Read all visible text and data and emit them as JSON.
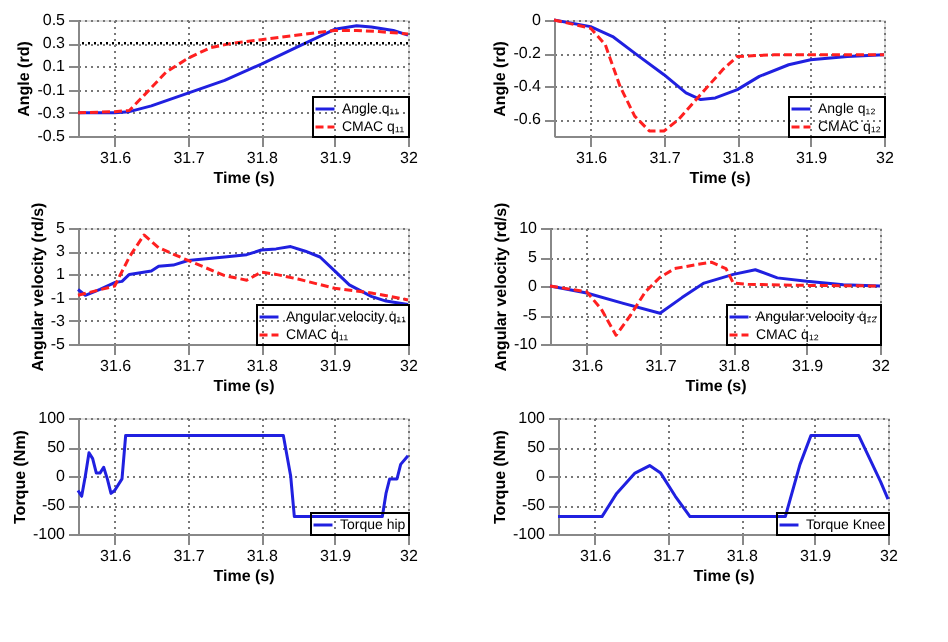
{
  "chart_data": [
    {
      "type": "line",
      "xlabel": "Time (s)",
      "ylabel": "Angle (rd)",
      "xlim": [
        31.55,
        32
      ],
      "xticks": [
        31.6,
        31.7,
        31.8,
        31.9,
        32
      ],
      "ylim": [
        -0.5,
        0.5
      ],
      "yticks": [
        -0.5,
        -0.3,
        -0.1,
        0.1,
        0.3,
        0.5
      ],
      "grid": true,
      "legend": "bottom right",
      "marker": "none",
      "ref_lines": [
        {
          "axis": "y",
          "value": 0.3,
          "color": "#000000",
          "line_style": "dotted"
        }
      ],
      "series": [
        {
          "name": "Angle q₁₁",
          "color": "#2020e0",
          "line_style": "solid",
          "x": [
            31.55,
            31.6,
            31.62,
            31.65,
            31.7,
            31.75,
            31.8,
            31.85,
            31.9,
            31.93,
            31.95,
            31.98,
            32
          ],
          "values": [
            -0.3,
            -0.3,
            -0.29,
            -0.24,
            -0.13,
            -0.02,
            0.12,
            0.27,
            0.42,
            0.45,
            0.44,
            0.41,
            0.37
          ]
        },
        {
          "name": "CMAC q₁₁",
          "color": "#ff2020",
          "line_style": "dashed",
          "x": [
            31.55,
            31.6,
            31.62,
            31.64,
            31.67,
            31.7,
            31.73,
            31.76,
            31.8,
            31.85,
            31.9,
            31.93,
            31.96,
            32
          ],
          "values": [
            -0.3,
            -0.29,
            -0.28,
            -0.15,
            0.05,
            0.17,
            0.26,
            0.3,
            0.33,
            0.37,
            0.41,
            0.41,
            0.4,
            0.38
          ]
        }
      ]
    },
    {
      "type": "line",
      "xlabel": "Time (s)",
      "ylabel": "Angle (rd)",
      "xlim": [
        31.55,
        32
      ],
      "xticks": [
        31.6,
        31.7,
        31.8,
        31.9,
        32
      ],
      "ylim": [
        -0.7,
        0
      ],
      "yticks": [
        -0.6,
        -0.4,
        -0.2,
        0
      ],
      "grid": true,
      "legend": "bottom right",
      "marker": "none",
      "series": [
        {
          "name": "Angle q₁₂",
          "color": "#2020e0",
          "line_style": "solid",
          "x": [
            31.55,
            31.6,
            31.63,
            31.66,
            31.7,
            31.73,
            31.75,
            31.77,
            31.8,
            31.83,
            31.87,
            31.9,
            31.95,
            32
          ],
          "values": [
            0,
            -0.04,
            -0.1,
            -0.2,
            -0.33,
            -0.44,
            -0.48,
            -0.47,
            -0.42,
            -0.34,
            -0.27,
            -0.24,
            -0.22,
            -0.21
          ]
        },
        {
          "name": "CMAC q₁₂",
          "color": "#ff2020",
          "line_style": "dashed",
          "x": [
            31.55,
            31.6,
            31.62,
            31.64,
            31.66,
            31.68,
            31.7,
            31.72,
            31.75,
            31.78,
            31.8,
            31.85,
            31.9,
            32
          ],
          "values": [
            0,
            -0.05,
            -0.15,
            -0.4,
            -0.58,
            -0.67,
            -0.67,
            -0.6,
            -0.45,
            -0.3,
            -0.22,
            -0.21,
            -0.21,
            -0.21
          ]
        }
      ]
    },
    {
      "type": "line",
      "xlabel": "Time (s)",
      "ylabel": "Angular velocity (rd/s)",
      "xlim": [
        31.55,
        32
      ],
      "xticks": [
        31.6,
        31.7,
        31.8,
        31.9,
        32
      ],
      "ylim": [
        -5,
        5
      ],
      "yticks": [
        -5,
        -3,
        -1,
        1,
        3,
        5
      ],
      "grid": true,
      "legend": "bottom right",
      "marker": "none",
      "series": [
        {
          "name": "Angular velocity q̇₁₁",
          "color": "#2020e0",
          "line_style": "solid",
          "x": [
            31.55,
            31.56,
            31.58,
            31.6,
            31.61,
            31.62,
            31.65,
            31.66,
            31.68,
            31.7,
            31.75,
            31.78,
            31.8,
            31.82,
            31.84,
            31.86,
            31.88,
            31.9,
            31.92,
            31.95,
            31.97,
            32
          ],
          "values": [
            -0.3,
            -0.8,
            -0.3,
            0.3,
            0.4,
            1.0,
            1.3,
            1.7,
            1.8,
            2.2,
            2.5,
            2.7,
            3.1,
            3.2,
            3.4,
            3.0,
            2.5,
            1.3,
            0.1,
            -0.9,
            -1.3,
            -1.6
          ]
        },
        {
          "name": "CMAC q̇₁₁",
          "color": "#ff2020",
          "line_style": "dashed",
          "x": [
            31.55,
            31.6,
            31.62,
            31.64,
            31.66,
            31.7,
            31.75,
            31.78,
            31.8,
            31.82,
            31.85,
            31.9,
            31.95,
            32
          ],
          "values": [
            -0.8,
            0,
            2.5,
            4.4,
            3.3,
            2.2,
            0.9,
            0.5,
            1.2,
            1.0,
            0.6,
            -0.2,
            -0.6,
            -1.2
          ]
        }
      ]
    },
    {
      "type": "line",
      "xlabel": "Time (s)",
      "ylabel": "Angular velocity (rd/s)",
      "xlim": [
        31.55,
        32
      ],
      "xticks": [
        31.6,
        31.7,
        31.8,
        31.9,
        32
      ],
      "ylim": [
        -10,
        10
      ],
      "yticks": [
        -10,
        -5,
        0,
        5,
        10
      ],
      "grid": true,
      "legend": "bottom right",
      "marker": "none",
      "series": [
        {
          "name": "Angular velocity q̇₁₂",
          "color": "#2020e0",
          "line_style": "solid",
          "x": [
            31.55,
            31.6,
            31.65,
            31.7,
            31.73,
            31.76,
            31.8,
            31.83,
            31.86,
            31.9,
            31.95,
            32
          ],
          "values": [
            0,
            -1.2,
            -3,
            -4.7,
            -2,
            0.5,
            2,
            2.8,
            1.4,
            0.8,
            0.2,
            0
          ]
        },
        {
          "name": "CMAC q̇₁₂",
          "color": "#ff2020",
          "line_style": "dashed",
          "x": [
            31.55,
            31.6,
            31.62,
            31.64,
            31.66,
            31.68,
            31.7,
            31.72,
            31.75,
            31.77,
            31.79,
            31.8,
            31.82,
            31.9,
            32
          ],
          "values": [
            0,
            -1,
            -4,
            -8.5,
            -5,
            -1,
            1.5,
            3,
            3.7,
            4.1,
            3.0,
            0.5,
            0.3,
            0.1,
            0
          ]
        }
      ]
    },
    {
      "type": "line",
      "xlabel": "Time (s)",
      "ylabel": "Torque (Nm)",
      "xlim": [
        31.55,
        32
      ],
      "xticks": [
        31.6,
        31.7,
        31.8,
        31.9,
        32
      ],
      "ylim": [
        -100,
        100
      ],
      "yticks": [
        -100,
        -50,
        0,
        50,
        100
      ],
      "grid": true,
      "legend": "bottom right",
      "marker": "none",
      "series": [
        {
          "name": "Torque hip",
          "color": "#2020e0",
          "line_style": "solid",
          "x": [
            31.55,
            31.555,
            31.56,
            31.565,
            31.57,
            31.575,
            31.58,
            31.585,
            31.59,
            31.595,
            31.6,
            31.61,
            31.615,
            31.83,
            31.84,
            31.845,
            31.965,
            31.97,
            31.975,
            31.985,
            31.99,
            32
          ],
          "values": [
            -25,
            -35,
            0,
            40,
            30,
            5,
            5,
            15,
            -5,
            -30,
            -25,
            -5,
            70,
            70,
            0,
            -70,
            -70,
            -30,
            -5,
            -5,
            20,
            35
          ]
        }
      ]
    },
    {
      "type": "line",
      "xlabel": "Time (s)",
      "ylabel": "Torque (Nm)",
      "xlim": [
        31.55,
        32
      ],
      "xticks": [
        31.6,
        31.7,
        31.8,
        31.9,
        32
      ],
      "ylim": [
        -100,
        100
      ],
      "yticks": [
        -100,
        -50,
        0,
        50,
        100
      ],
      "grid": true,
      "legend": "bottom right",
      "marker": "none",
      "series": [
        {
          "name": "Torque Knee",
          "color": "#2020e0",
          "line_style": "solid",
          "x": [
            31.55,
            31.61,
            31.63,
            31.655,
            31.675,
            31.69,
            31.71,
            31.73,
            31.86,
            31.88,
            31.895,
            31.96,
            31.99,
            32
          ],
          "values": [
            -70,
            -70,
            -30,
            5,
            18,
            5,
            -35,
            -70,
            -70,
            20,
            70,
            70,
            -10,
            -40
          ]
        }
      ]
    }
  ]
}
